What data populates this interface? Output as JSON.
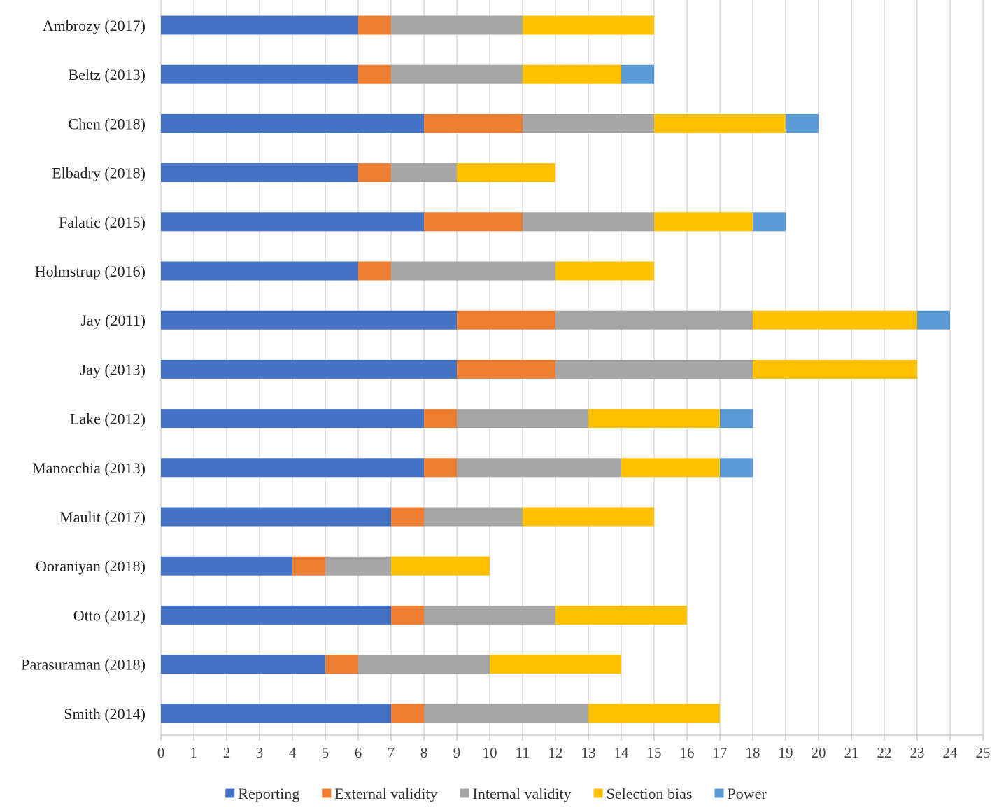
{
  "chart_data": {
    "type": "bar",
    "orientation": "horizontal",
    "stacked": true,
    "title": "",
    "xlabel": "",
    "ylabel": "",
    "xlim": [
      0,
      25
    ],
    "x_ticks": [
      "0",
      "1",
      "2",
      "3",
      "4",
      "5",
      "6",
      "7",
      "8",
      "9",
      "10",
      "11",
      "12",
      "13",
      "14",
      "15",
      "16",
      "17",
      "18",
      "19",
      "20",
      "21",
      "22",
      "23",
      "24",
      "25"
    ],
    "grid": "vertical",
    "legend_position": "bottom",
    "categories": [
      "Ambrozy (2017)",
      "Beltz (2013)",
      "Chen (2018)",
      "Elbadry (2018)",
      "Falatic (2015)",
      "Holmstrup (2016)",
      "Jay (2011)",
      "Jay (2013)",
      "Lake (2012)",
      "Manocchia (2013)",
      "Maulit (2017)",
      "Ooraniyan (2018)",
      "Otto (2012)",
      "Parasuraman (2018)",
      "Smith (2014)"
    ],
    "series": [
      {
        "name": "Reporting",
        "color": "#4472C4",
        "values": [
          6,
          6,
          8,
          6,
          8,
          6,
          9,
          9,
          8,
          8,
          7,
          4,
          7,
          5,
          7
        ]
      },
      {
        "name": "External validity",
        "color": "#ED7D31",
        "values": [
          1,
          1,
          3,
          1,
          3,
          1,
          3,
          3,
          1,
          1,
          1,
          1,
          1,
          1,
          1
        ]
      },
      {
        "name": "Internal validity",
        "color": "#A5A5A5",
        "values": [
          4,
          4,
          4,
          2,
          4,
          5,
          6,
          6,
          4,
          5,
          3,
          2,
          4,
          4,
          5
        ]
      },
      {
        "name": "Selection bias",
        "color": "#FFC000",
        "values": [
          4,
          3,
          4,
          3,
          3,
          3,
          5,
          5,
          4,
          3,
          4,
          3,
          4,
          4,
          4
        ]
      },
      {
        "name": "Power",
        "color": "#5B9BD5",
        "values": [
          0,
          1,
          1,
          0,
          1,
          0,
          1,
          0,
          1,
          1,
          0,
          0,
          0,
          0,
          0
        ]
      }
    ]
  }
}
